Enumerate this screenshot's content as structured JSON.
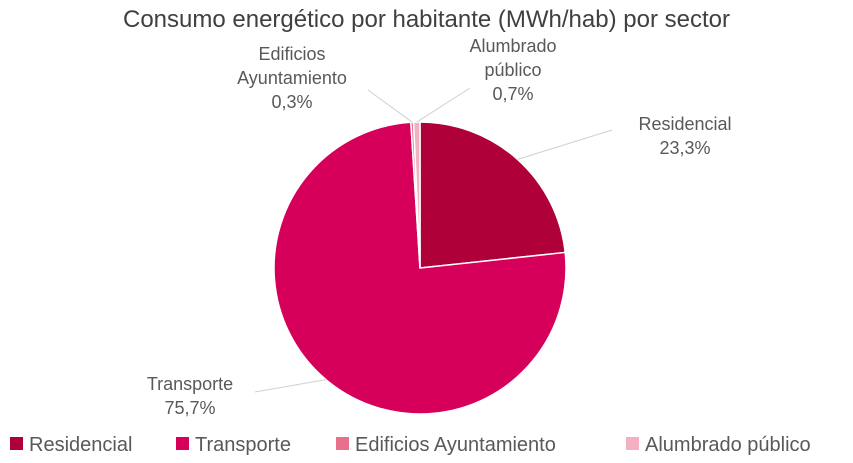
{
  "chart_data": {
    "type": "pie",
    "title": "Consumo energético por habitante (MWh/hab) por sector",
    "categories": [
      "Residencial",
      "Transporte",
      "Edificios Ayuntamiento",
      "Alumbrado público"
    ],
    "values": [
      23.3,
      75.7,
      0.3,
      0.7
    ],
    "value_labels": [
      "23,3%",
      "75,7%",
      "0,3%",
      "0,7%"
    ],
    "colors": [
      "#b0003a",
      "#d6005a",
      "#e8708a",
      "#f2b0c0"
    ],
    "legend": "bottom"
  }
}
